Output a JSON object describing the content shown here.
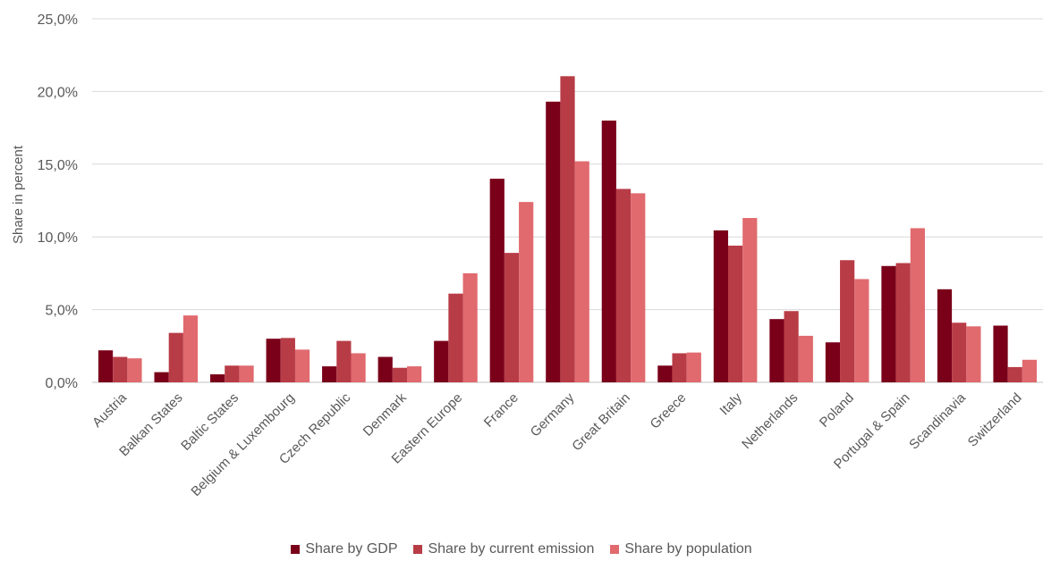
{
  "chart_data": {
    "type": "bar",
    "ylabel": "Share in percent",
    "ylim": [
      0,
      25
    ],
    "yticks": [
      "0,0%",
      "5,0%",
      "10,0%",
      "15,0%",
      "20,0%",
      "25,0%"
    ],
    "grid": true,
    "legend_position": "bottom",
    "categories": [
      "Austria",
      "Balkan States",
      "Baltic States",
      "Belgium & Luxembourg",
      "Czech Republic",
      "Denmark",
      "Eastern Europe",
      "France",
      "Germany",
      "Great Britain",
      "Greece",
      "Italy",
      "Netherlands",
      "Poland",
      "Portugal & Spain",
      "Scandinavia",
      "Switzerland"
    ],
    "series": [
      {
        "name": "Share by GDP",
        "color": "#7a0019",
        "values": [
          2.2,
          0.7,
          0.55,
          3.0,
          1.1,
          1.75,
          2.85,
          14.0,
          19.3,
          18.0,
          1.15,
          10.45,
          4.35,
          2.75,
          8.0,
          6.4,
          3.9
        ]
      },
      {
        "name": "Share by current emission",
        "color": "#b83c46",
        "values": [
          1.75,
          3.4,
          1.15,
          3.05,
          2.85,
          1.0,
          6.1,
          8.9,
          21.05,
          13.3,
          2.0,
          9.4,
          4.9,
          8.4,
          8.2,
          4.1,
          1.05
        ]
      },
      {
        "name": "Share by population",
        "color": "#e06a6e",
        "values": [
          1.65,
          4.6,
          1.15,
          2.25,
          2.0,
          1.1,
          7.5,
          12.4,
          15.2,
          13.0,
          2.05,
          11.3,
          3.2,
          7.1,
          10.6,
          3.85,
          1.55
        ]
      }
    ]
  }
}
